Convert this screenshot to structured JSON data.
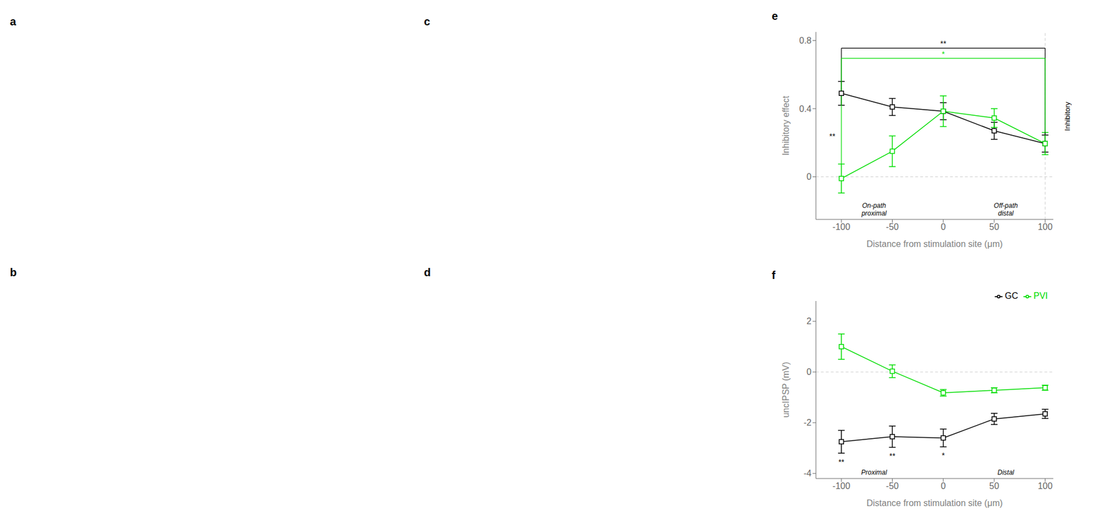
{
  "annotations": [
    "a",
    "b",
    "c",
    "d"
  ],
  "chart_data": [
    {
      "type": "line",
      "title": "e",
      "xlabel": "Distance from stimulation site (μm)",
      "ylabel": "Inhibitory effect",
      "x": [
        -100,
        -50,
        0,
        50,
        100
      ],
      "series": [
        {
          "name": "GC",
          "color": "#000000",
          "marker": "square",
          "values": [
            0.49,
            0.41,
            0.385,
            0.27,
            0.195
          ],
          "errors": [
            0.07,
            0.05,
            0.05,
            0.05,
            0.05
          ]
        },
        {
          "name": "PVI",
          "color": "#00dd00",
          "marker": "square",
          "values": [
            -0.01,
            0.15,
            0.385,
            0.345,
            0.195
          ],
          "errors": [
            0.085,
            0.09,
            0.09,
            0.055,
            0.065
          ]
        }
      ],
      "xlim": [
        -125,
        108
      ],
      "xticks": [
        -100,
        -50,
        0,
        50,
        100
      ],
      "ylim": [
        -0.25,
        0.85
      ],
      "yticks": [
        0,
        0.4,
        0.8
      ],
      "hlines": [
        0
      ],
      "vlines": [
        100
      ],
      "brackets": [
        {
          "series": "GC",
          "from": -100,
          "to": 100,
          "y": 0.755,
          "label": "**"
        },
        {
          "series": "PVI",
          "from": -100,
          "to": 100,
          "y": 0.695,
          "label": "*"
        }
      ],
      "point_labels": [
        {
          "x": -100,
          "label": "**"
        }
      ],
      "annotations": [
        "On-path\nproximal",
        "Off-path\ndistal"
      ],
      "side_label": "Inhibitory"
    },
    {
      "type": "line",
      "title": "f",
      "xlabel": "Distance from stimulation site (μm)",
      "ylabel": "uncIPSP (mV)",
      "x": [
        -100,
        -50,
        0,
        50,
        100
      ],
      "series": [
        {
          "name": "GC",
          "color": "#000000",
          "marker": "square",
          "values": [
            -2.75,
            -2.55,
            -2.6,
            -1.85,
            -1.65
          ],
          "errors": [
            0.45,
            0.42,
            0.35,
            0.22,
            0.18
          ]
        },
        {
          "name": "PVI",
          "color": "#00dd00",
          "marker": "square",
          "values": [
            1.0,
            0.03,
            -0.82,
            -0.72,
            -0.62
          ],
          "errors": [
            0.5,
            0.25,
            0.13,
            0.1,
            0.1
          ]
        }
      ],
      "xlim": [
        -125,
        108
      ],
      "xticks": [
        -100,
        -50,
        0,
        50,
        100
      ],
      "ylim": [
        -4.2,
        2.8
      ],
      "yticks": [
        -4,
        -2,
        0,
        2
      ],
      "hlines": [
        0
      ],
      "point_labels": [
        {
          "x": -100,
          "label": "**"
        },
        {
          "x": -50,
          "label": "**"
        },
        {
          "x": 0,
          "label": "*"
        }
      ],
      "annotations": [
        "Proximal",
        "Distal"
      ],
      "legend": "upper right"
    }
  ]
}
